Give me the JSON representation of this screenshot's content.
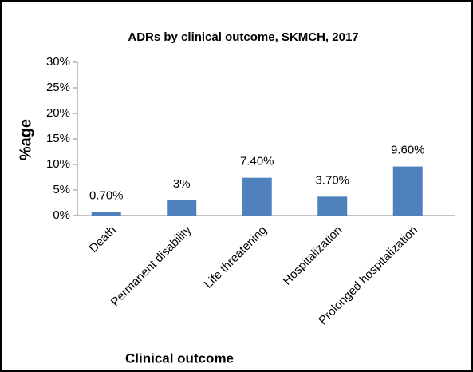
{
  "chart_data": {
    "type": "bar",
    "title": "ADRs by clinical outcome, SKMCH, 2017",
    "x_label": "Clinical outcome",
    "y_label": "%age",
    "categories": [
      "Death",
      "Permanent disability",
      "Life threatening",
      "Hospitalization",
      "Prolonged hospitalization"
    ],
    "values": [
      0.7,
      3,
      7.4,
      3.7,
      9.6
    ],
    "value_labels": [
      "0.70%",
      "3%",
      "7.40%",
      "3.70%",
      "9.60%"
    ],
    "color": "#4f81bd",
    "ylim": [
      0,
      30
    ],
    "yticks": [
      {
        "value": 0,
        "label": "0%"
      },
      {
        "value": 5,
        "label": "5%"
      },
      {
        "value": 10,
        "label": "10%"
      },
      {
        "value": 15,
        "label": "15%"
      },
      {
        "value": 20,
        "label": "20%"
      },
      {
        "value": 25,
        "label": "25%"
      },
      {
        "value": 30,
        "label": "30%"
      }
    ],
    "grid": false
  }
}
